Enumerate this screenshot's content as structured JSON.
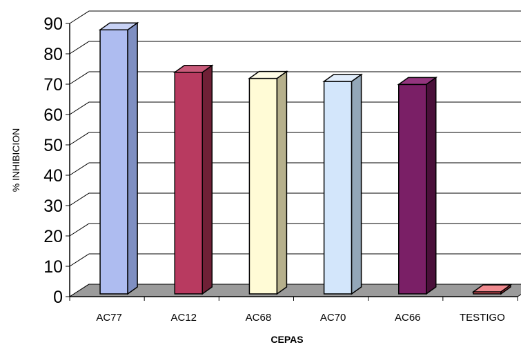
{
  "chart_data": {
    "type": "bar",
    "style": "3d",
    "categories": [
      "AC77",
      "AC12",
      "AC68",
      "AC70",
      "AC66",
      "TESTIGO"
    ],
    "values": [
      87,
      73,
      71,
      70,
      69,
      0
    ],
    "colors": [
      "#aebcf0",
      "#b83a60",
      "#fffbd6",
      "#d3e6fb",
      "#7a1f66",
      "#e8585f"
    ],
    "side_colors": [
      "#7f8fc2",
      "#6f2036",
      "#b6b08c",
      "#93a7b8",
      "#4a103a",
      "#a52f35"
    ],
    "top_colors": [
      "#c8d2f5",
      "#c95a7a",
      "#fffce6",
      "#e2eefc",
      "#93357e",
      "#f08a8f"
    ],
    "xlabel": "CEPAS",
    "ylabel": "% INHIBICION",
    "ylim": [
      0,
      90
    ],
    "yticks": [
      "0",
      "10",
      "20",
      "30",
      "40",
      "50",
      "60",
      "70",
      "80",
      "90"
    ],
    "grid": true,
    "legend": "none"
  }
}
